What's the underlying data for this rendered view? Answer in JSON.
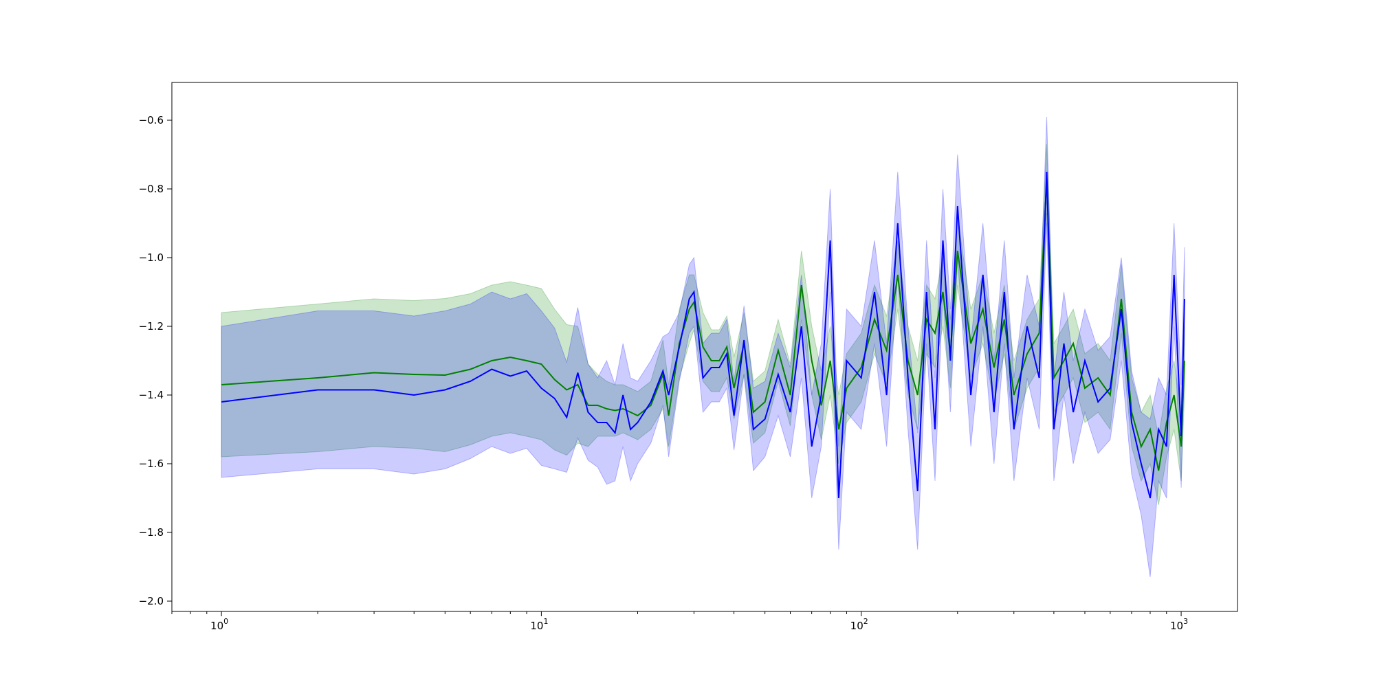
{
  "chart_data": {
    "type": "line",
    "title": "",
    "xlabel": "",
    "ylabel": "",
    "xscale": "log",
    "xlim": [
      0.7,
      1500
    ],
    "ylim": [
      -2.03,
      -0.49
    ],
    "grid": false,
    "legend": "none",
    "x_ticks": [
      {
        "value": 1,
        "base": "10",
        "exp": "0"
      },
      {
        "value": 10,
        "base": "10",
        "exp": "1"
      },
      {
        "value": 100,
        "base": "10",
        "exp": "2"
      },
      {
        "value": 1000,
        "base": "10",
        "exp": "3"
      }
    ],
    "y_ticks": [
      {
        "value": -0.6,
        "label": "−0.6"
      },
      {
        "value": -0.8,
        "label": "−0.8"
      },
      {
        "value": -1.0,
        "label": "−1.0"
      },
      {
        "value": -1.2,
        "label": "−1.2"
      },
      {
        "value": -1.4,
        "label": "−1.4"
      },
      {
        "value": -1.6,
        "label": "−1.6"
      },
      {
        "value": -1.8,
        "label": "−1.8"
      },
      {
        "value": -2.0,
        "label": "−2.0"
      }
    ],
    "series": [
      {
        "color": "#008000",
        "band_color": "#008000",
        "band_opacity": 0.2,
        "x": [
          1,
          2,
          3,
          4,
          5,
          6,
          7,
          8,
          9,
          10,
          11,
          12,
          13,
          14,
          15,
          16,
          17,
          18,
          19,
          20,
          22,
          24,
          25,
          27,
          29,
          30,
          32,
          34,
          36,
          38,
          40,
          43,
          46,
          50,
          55,
          60,
          65,
          70,
          75,
          80,
          85,
          90,
          100,
          110,
          120,
          130,
          140,
          150,
          160,
          170,
          180,
          190,
          200,
          220,
          240,
          260,
          280,
          300,
          330,
          360,
          380,
          400,
          430,
          460,
          500,
          550,
          600,
          650,
          700,
          750,
          800,
          850,
          900,
          950,
          1000,
          1024
        ],
        "y": [
          -1.37,
          -1.35,
          -1.335,
          -1.34,
          -1.342,
          -1.325,
          -1.3,
          -1.29,
          -1.3,
          -1.31,
          -1.355,
          -1.385,
          -1.37,
          -1.43,
          -1.43,
          -1.44,
          -1.445,
          -1.44,
          -1.45,
          -1.46,
          -1.43,
          -1.34,
          -1.46,
          -1.25,
          -1.15,
          -1.13,
          -1.26,
          -1.3,
          -1.3,
          -1.26,
          -1.38,
          -1.25,
          -1.45,
          -1.42,
          -1.27,
          -1.4,
          -1.08,
          -1.3,
          -1.43,
          -1.3,
          -1.5,
          -1.38,
          -1.32,
          -1.18,
          -1.27,
          -1.05,
          -1.3,
          -1.4,
          -1.18,
          -1.22,
          -1.1,
          -1.28,
          -0.98,
          -1.25,
          -1.15,
          -1.32,
          -1.18,
          -1.4,
          -1.28,
          -1.22,
          -0.77,
          -1.35,
          -1.3,
          -1.25,
          -1.38,
          -1.35,
          -1.4,
          -1.12,
          -1.45,
          -1.55,
          -1.5,
          -1.62,
          -1.48,
          -1.4,
          -1.55,
          -1.3
        ],
        "lower": [
          -1.58,
          -1.565,
          -1.55,
          -1.555,
          -1.565,
          -1.545,
          -1.52,
          -1.51,
          -1.52,
          -1.53,
          -1.56,
          -1.575,
          -1.54,
          -1.55,
          -1.52,
          -1.52,
          -1.52,
          -1.51,
          -1.52,
          -1.53,
          -1.5,
          -1.44,
          -1.55,
          -1.35,
          -1.25,
          -1.21,
          -1.36,
          -1.39,
          -1.39,
          -1.35,
          -1.47,
          -1.34,
          -1.54,
          -1.51,
          -1.36,
          -1.49,
          -1.18,
          -1.4,
          -1.53,
          -1.4,
          -1.6,
          -1.48,
          -1.42,
          -1.28,
          -1.37,
          -1.15,
          -1.4,
          -1.5,
          -1.28,
          -1.32,
          -1.2,
          -1.38,
          -1.08,
          -1.35,
          -1.25,
          -1.42,
          -1.28,
          -1.5,
          -1.38,
          -1.32,
          -0.87,
          -1.45,
          -1.4,
          -1.35,
          -1.48,
          -1.45,
          -1.5,
          -1.22,
          -1.55,
          -1.65,
          -1.6,
          -1.72,
          -1.58,
          -1.5,
          -1.65,
          -1.4
        ],
        "upper": [
          -1.16,
          -1.135,
          -1.12,
          -1.125,
          -1.119,
          -1.105,
          -1.08,
          -1.07,
          -1.08,
          -1.09,
          -1.15,
          -1.195,
          -1.2,
          -1.31,
          -1.34,
          -1.36,
          -1.37,
          -1.37,
          -1.38,
          -1.39,
          -1.36,
          -1.24,
          -1.37,
          -1.15,
          -1.05,
          -1.05,
          -1.16,
          -1.21,
          -1.21,
          -1.17,
          -1.29,
          -1.16,
          -1.36,
          -1.33,
          -1.18,
          -1.31,
          -0.98,
          -1.2,
          -1.33,
          -1.2,
          -1.4,
          -1.28,
          -1.22,
          -1.08,
          -1.17,
          -0.95,
          -1.2,
          -1.3,
          -1.08,
          -1.12,
          -1.0,
          -1.18,
          -0.88,
          -1.15,
          -1.05,
          -1.22,
          -1.08,
          -1.3,
          -1.18,
          -1.12,
          -0.67,
          -1.25,
          -1.2,
          -1.15,
          -1.28,
          -1.25,
          -1.3,
          -1.02,
          -1.35,
          -1.45,
          -1.4,
          -1.52,
          -1.38,
          -1.3,
          -1.45,
          -1.2
        ]
      },
      {
        "color": "#0000ff",
        "band_color": "#0000ff",
        "band_opacity": 0.2,
        "x": [
          1,
          2,
          3,
          4,
          5,
          6,
          7,
          8,
          9,
          10,
          11,
          12,
          13,
          14,
          15,
          16,
          17,
          18,
          19,
          20,
          22,
          24,
          25,
          27,
          29,
          30,
          32,
          34,
          36,
          38,
          40,
          43,
          46,
          50,
          55,
          60,
          65,
          70,
          75,
          80,
          85,
          90,
          100,
          110,
          120,
          130,
          140,
          150,
          160,
          170,
          180,
          190,
          200,
          220,
          240,
          260,
          280,
          300,
          330,
          360,
          380,
          400,
          430,
          460,
          500,
          550,
          600,
          650,
          700,
          750,
          800,
          850,
          900,
          950,
          1000,
          1024
        ],
        "y": [
          -1.42,
          -1.385,
          -1.385,
          -1.4,
          -1.385,
          -1.36,
          -1.325,
          -1.345,
          -1.33,
          -1.38,
          -1.41,
          -1.465,
          -1.335,
          -1.45,
          -1.48,
          -1.48,
          -1.51,
          -1.4,
          -1.5,
          -1.48,
          -1.42,
          -1.33,
          -1.4,
          -1.26,
          -1.12,
          -1.1,
          -1.35,
          -1.32,
          -1.32,
          -1.28,
          -1.46,
          -1.24,
          -1.5,
          -1.47,
          -1.34,
          -1.45,
          -1.2,
          -1.55,
          -1.4,
          -0.95,
          -1.7,
          -1.3,
          -1.35,
          -1.1,
          -1.4,
          -0.9,
          -1.35,
          -1.68,
          -1.1,
          -1.5,
          -0.95,
          -1.3,
          -0.85,
          -1.4,
          -1.05,
          -1.45,
          -1.1,
          -1.5,
          -1.2,
          -1.35,
          -0.75,
          -1.5,
          -1.25,
          -1.45,
          -1.3,
          -1.42,
          -1.38,
          -1.15,
          -1.48,
          -1.6,
          -1.7,
          -1.5,
          -1.55,
          -1.05,
          -1.52,
          -1.12
        ],
        "lower": [
          -1.64,
          -1.615,
          -1.615,
          -1.63,
          -1.615,
          -1.585,
          -1.55,
          -1.57,
          -1.555,
          -1.605,
          -1.615,
          -1.625,
          -1.525,
          -1.59,
          -1.61,
          -1.66,
          -1.65,
          -1.55,
          -1.65,
          -1.6,
          -1.54,
          -1.43,
          -1.58,
          -1.36,
          -1.22,
          -1.2,
          -1.45,
          -1.42,
          -1.42,
          -1.38,
          -1.56,
          -1.34,
          -1.62,
          -1.58,
          -1.46,
          -1.58,
          -1.35,
          -1.7,
          -1.55,
          -1.1,
          -1.85,
          -1.45,
          -1.5,
          -1.25,
          -1.55,
          -1.05,
          -1.5,
          -1.85,
          -1.25,
          -1.65,
          -1.1,
          -1.45,
          -1.0,
          -1.55,
          -1.2,
          -1.6,
          -1.25,
          -1.65,
          -1.35,
          -1.5,
          -0.9,
          -1.65,
          -1.4,
          -1.6,
          -1.45,
          -1.57,
          -1.53,
          -1.3,
          -1.63,
          -1.75,
          -1.93,
          -1.65,
          -1.7,
          -1.2,
          -1.67,
          -1.27
        ],
        "upper": [
          -1.2,
          -1.155,
          -1.155,
          -1.17,
          -1.155,
          -1.135,
          -1.1,
          -1.12,
          -1.105,
          -1.155,
          -1.205,
          -1.305,
          -1.145,
          -1.31,
          -1.35,
          -1.3,
          -1.37,
          -1.25,
          -1.35,
          -1.36,
          -1.3,
          -1.23,
          -1.22,
          -1.16,
          -1.02,
          -1.0,
          -1.25,
          -1.22,
          -1.22,
          -1.18,
          -1.36,
          -1.14,
          -1.38,
          -1.36,
          -1.22,
          -1.32,
          -1.05,
          -1.4,
          -1.25,
          -0.8,
          -1.55,
          -1.15,
          -1.2,
          -0.95,
          -1.25,
          -0.75,
          -1.2,
          -1.51,
          -0.95,
          -1.35,
          -0.8,
          -1.15,
          -0.7,
          -1.25,
          -0.9,
          -1.3,
          -0.95,
          -1.35,
          -1.05,
          -1.2,
          -0.59,
          -1.35,
          -1.1,
          -1.3,
          -1.15,
          -1.27,
          -1.23,
          -1.0,
          -1.33,
          -1.45,
          -1.47,
          -1.35,
          -1.4,
          -0.9,
          -1.37,
          -0.97
        ]
      }
    ]
  }
}
